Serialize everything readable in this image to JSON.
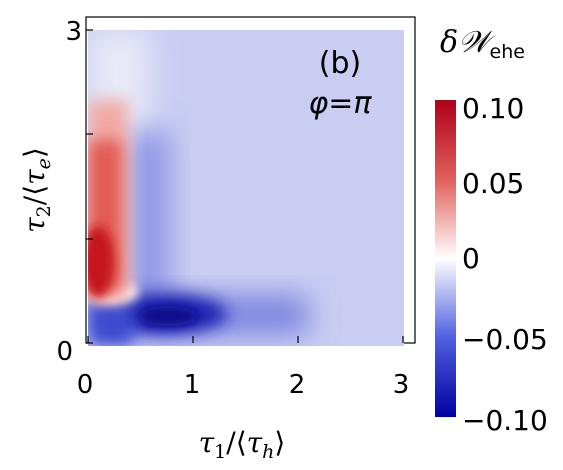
{
  "chart_data": {
    "type": "heatmap",
    "panel_label": "(b)",
    "annotation": "φ=π",
    "xlabel": "τ1/⟨τh⟩",
    "ylabel": "τ2/⟨τe⟩",
    "xlim": [
      0,
      3
    ],
    "ylim": [
      0,
      3
    ],
    "x_ticks": [
      "0",
      "1",
      "2",
      "3"
    ],
    "y_ticks": [
      "0",
      "3"
    ],
    "colorbar": {
      "title": "δ𝒲ehe",
      "range": [
        -0.1,
        0.1
      ],
      "tick_labels": [
        "0.10",
        "0.05",
        "0",
        "−0.05",
        "−0.10"
      ],
      "colors": [
        "#0000a0",
        "#3b4cc0",
        "#ffffff",
        "#d23a32",
        "#b0001a"
      ]
    },
    "features": [
      {
        "region": "red band",
        "x_range": [
          0,
          0.35
        ],
        "y_range": [
          0.55,
          2.2
        ],
        "value": 0.08
      },
      {
        "region": "blue minimum",
        "x": 0.75,
        "y": 0.3,
        "value": -0.1
      },
      {
        "region": "background",
        "value": -0.02
      }
    ]
  }
}
